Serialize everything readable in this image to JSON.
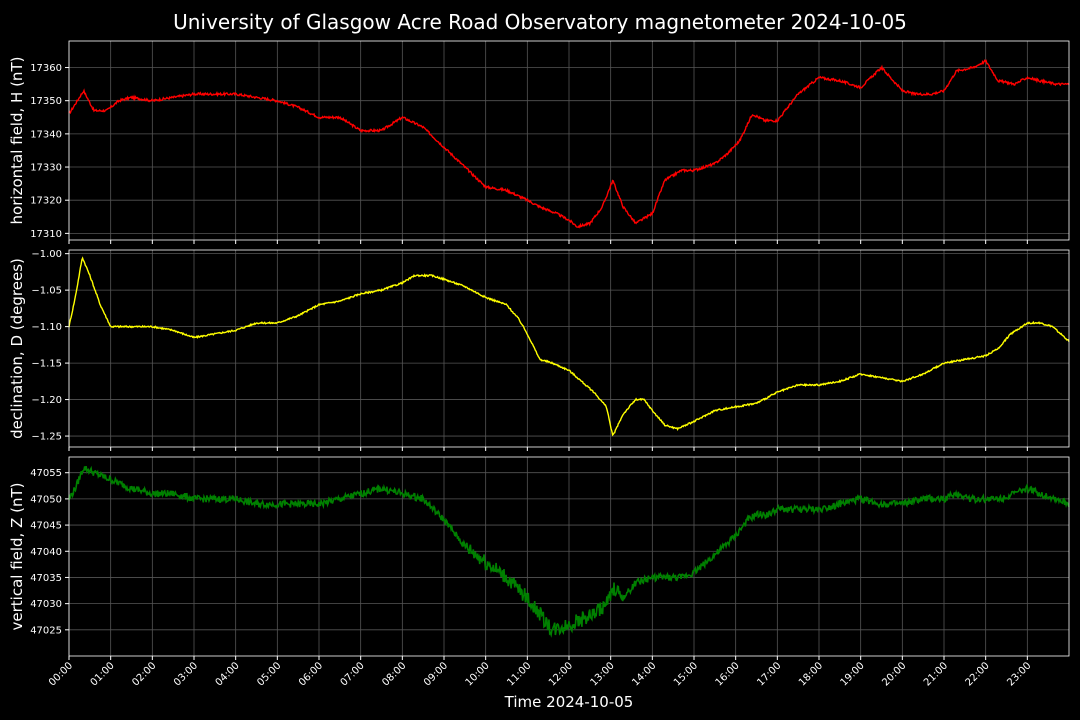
{
  "chart_data": {
    "type": "line",
    "title": "University of Glasgow Acre Road Observatory magnetometer 2024-10-05",
    "xlabel": "Time 2024-10-05",
    "x_unit": "hours since 00:00",
    "xlim": [
      0,
      24
    ],
    "x_ticks": [
      0,
      1,
      2,
      3,
      4,
      5,
      6,
      7,
      8,
      9,
      10,
      11,
      12,
      13,
      14,
      15,
      16,
      17,
      18,
      19,
      20,
      21,
      22,
      23
    ],
    "x_tick_labels": [
      "00:00",
      "01:00",
      "02:00",
      "03:00",
      "04:00",
      "05:00",
      "06:00",
      "07:00",
      "08:00",
      "09:00",
      "10:00",
      "11:00",
      "12:00",
      "13:00",
      "14:00",
      "15:00",
      "16:00",
      "17:00",
      "18:00",
      "19:00",
      "20:00",
      "21:00",
      "22:00",
      "23:00"
    ],
    "grid": true,
    "background": "#000000",
    "grid_color": "#555555",
    "panels": [
      {
        "ylabel": "horizontal field, H (nT)",
        "color": "#ff0000",
        "ylim": [
          17308,
          17368
        ],
        "y_ticks": [
          17310,
          17320,
          17330,
          17340,
          17350,
          17360
        ],
        "y_tick_labels": [
          "17310",
          "17320",
          "17330",
          "17340",
          "17350",
          "17360"
        ],
        "series": {
          "x": [
            0,
            0.15,
            0.35,
            0.6,
            0.9,
            1.2,
            1.5,
            2,
            2.5,
            3,
            3.5,
            4,
            4.5,
            5,
            5.5,
            6,
            6.5,
            7,
            7.5,
            8,
            8.5,
            9,
            9.5,
            10,
            10.5,
            11,
            11.3,
            11.7,
            12,
            12.2,
            12.5,
            12.8,
            13.05,
            13.3,
            13.6,
            14,
            14.3,
            14.7,
            15,
            15.5,
            15.8,
            16.1,
            16.4,
            16.7,
            17,
            17.5,
            18,
            18.5,
            19,
            19.5,
            20,
            20.3,
            20.7,
            21,
            21.3,
            21.7,
            22,
            22.3,
            22.7,
            23,
            23.3,
            23.7,
            24
          ],
          "y": [
            17346,
            17349,
            17353,
            17347,
            17347,
            17350,
            17351,
            17350,
            17351,
            17352,
            17352,
            17352,
            17351,
            17350,
            17348,
            17345,
            17345,
            17341,
            17341,
            17345,
            17342,
            17336,
            17330,
            17324,
            17323,
            17320,
            17318,
            17316,
            17314,
            17312,
            17313,
            17318,
            17326,
            17318,
            17313,
            17316,
            17326,
            17329,
            17329,
            17331,
            17334,
            17338,
            17346,
            17344,
            17344,
            17352,
            17357,
            17356,
            17354,
            17360,
            17353,
            17352,
            17352,
            17353,
            17359,
            17360,
            17362,
            17356,
            17355,
            17357,
            17356,
            17355,
            17355
          ]
        }
      },
      {
        "ylabel": "declination, D (degrees)",
        "color": "#ffff00",
        "ylim": [
          -1.265,
          -0.995
        ],
        "y_ticks": [
          -1.25,
          -1.2,
          -1.15,
          -1.1,
          -1.05,
          -1.0
        ],
        "y_tick_labels": [
          "−1.25",
          "−1.20",
          "−1.15",
          "−1.10",
          "−1.05",
          "−1.00"
        ],
        "series": {
          "x": [
            0,
            0.15,
            0.32,
            0.5,
            0.75,
            1.0,
            1.5,
            2.0,
            2.5,
            3.0,
            3.5,
            4.0,
            4.5,
            5.0,
            5.5,
            6.0,
            6.5,
            7.0,
            7.5,
            8.0,
            8.3,
            8.7,
            9.0,
            9.5,
            10.0,
            10.5,
            10.8,
            11.0,
            11.3,
            11.6,
            12.0,
            12.3,
            12.6,
            12.9,
            13.05,
            13.3,
            13.6,
            13.8,
            14.0,
            14.3,
            14.6,
            15.0,
            15.5,
            16.0,
            16.5,
            17.0,
            17.5,
            18.0,
            18.5,
            19.0,
            19.5,
            20.0,
            20.5,
            21.0,
            21.5,
            22.0,
            22.3,
            22.6,
            23.0,
            23.3,
            23.6,
            24.0
          ],
          "y": [
            -1.1,
            -1.06,
            -1.005,
            -1.03,
            -1.07,
            -1.1,
            -1.1,
            -1.1,
            -1.105,
            -1.115,
            -1.11,
            -1.105,
            -1.095,
            -1.095,
            -1.085,
            -1.07,
            -1.065,
            -1.055,
            -1.05,
            -1.04,
            -1.03,
            -1.03,
            -1.035,
            -1.045,
            -1.06,
            -1.07,
            -1.09,
            -1.11,
            -1.145,
            -1.15,
            -1.16,
            -1.175,
            -1.19,
            -1.21,
            -1.25,
            -1.22,
            -1.2,
            -1.2,
            -1.215,
            -1.235,
            -1.24,
            -1.23,
            -1.215,
            -1.21,
            -1.205,
            -1.19,
            -1.18,
            -1.18,
            -1.175,
            -1.165,
            -1.17,
            -1.175,
            -1.165,
            -1.15,
            -1.145,
            -1.14,
            -1.13,
            -1.11,
            -1.095,
            -1.095,
            -1.1,
            -1.12
          ]
        }
      },
      {
        "ylabel": "vertical field, Z (nT)",
        "color": "#008000",
        "ylim": [
          47020,
          47058
        ],
        "y_ticks": [
          47025,
          47030,
          47035,
          47040,
          47045,
          47050,
          47055
        ],
        "y_tick_labels": [
          "47025",
          "47030",
          "47035",
          "47040",
          "47045",
          "47050",
          "47055"
        ],
        "series": {
          "x": [
            0,
            0.15,
            0.35,
            0.6,
            0.9,
            1.2,
            1.5,
            2,
            2.5,
            3,
            3.5,
            4,
            4.5,
            5,
            5.5,
            6,
            6.5,
            7,
            7.5,
            8,
            8.5,
            9,
            9.5,
            10,
            10.5,
            11,
            11.3,
            11.6,
            12,
            12.3,
            12.6,
            12.9,
            13.1,
            13.3,
            13.6,
            14,
            14.3,
            14.7,
            15,
            15.3,
            15.6,
            16,
            16.3,
            16.5,
            16.8,
            17,
            17.5,
            18,
            18.5,
            19,
            19.5,
            20,
            20.5,
            21,
            21.3,
            21.7,
            22,
            22.3,
            22.7,
            23,
            23.3,
            23.7,
            24
          ],
          "y": [
            47050,
            47052,
            47056,
            47055,
            47054,
            47053,
            47052,
            47051,
            47051,
            47050,
            47050,
            47050,
            47049,
            47049,
            47049,
            47049,
            47050,
            47051,
            47052,
            47051,
            47050,
            47046,
            47041,
            47038,
            47035,
            47031,
            47028,
            47025,
            47026,
            47027,
            47028,
            47030,
            47033,
            47031,
            47034,
            47035,
            47035,
            47035,
            47036,
            47038,
            47040,
            47043,
            47046,
            47047,
            47047,
            47048,
            47048,
            47048,
            47049,
            47050,
            47049,
            47049,
            47050,
            47050,
            47051,
            47050,
            47050,
            47050,
            47051,
            47052,
            47051,
            47050,
            47049
          ]
        }
      }
    ]
  }
}
